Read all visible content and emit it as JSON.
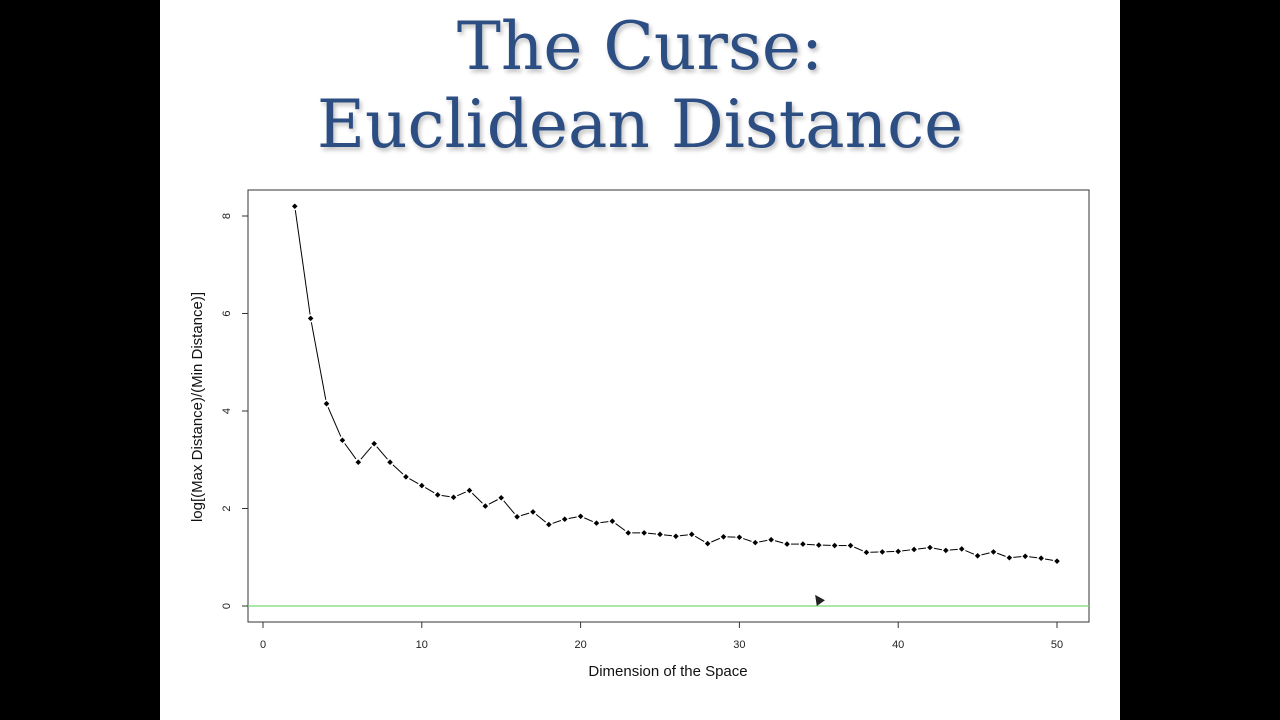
{
  "slide": {
    "title_line1": "The Curse:",
    "title_line2": "Euclidean Distance"
  },
  "colors": {
    "title": "#2d4e82",
    "series": "#000000",
    "reference_line": "#77d977"
  },
  "chart_data": {
    "type": "line",
    "xlabel": "Dimension of the Space",
    "ylabel": "log[(Max Distance)/(Min Distance)]",
    "xlim": [
      0,
      50
    ],
    "ylim": [
      0,
      8
    ],
    "xticks": [
      0,
      10,
      20,
      30,
      40,
      50
    ],
    "yticks": [
      0,
      2,
      4,
      6,
      8
    ],
    "grid": false,
    "reference_line": {
      "y": 0
    },
    "series": [
      {
        "x": [
          2,
          3,
          4,
          5,
          6,
          7,
          8,
          9,
          10,
          11,
          12,
          13,
          14,
          15,
          16,
          17,
          18,
          19,
          20,
          21,
          22,
          23,
          24,
          25,
          26,
          27,
          28,
          29,
          30,
          31,
          32,
          33,
          34,
          35,
          36,
          37,
          38,
          39,
          40,
          41,
          42,
          43,
          44,
          45,
          46,
          47,
          48,
          49,
          50
        ],
        "y": [
          8.2,
          5.9,
          4.15,
          3.4,
          2.95,
          3.33,
          2.95,
          2.65,
          2.47,
          2.28,
          2.23,
          2.37,
          2.05,
          2.22,
          1.83,
          1.93,
          1.67,
          1.78,
          1.84,
          1.7,
          1.74,
          1.5,
          1.5,
          1.47,
          1.43,
          1.47,
          1.28,
          1.42,
          1.41,
          1.3,
          1.36,
          1.27,
          1.27,
          1.25,
          1.24,
          1.24,
          1.1,
          1.11,
          1.12,
          1.16,
          1.2,
          1.14,
          1.17,
          1.03,
          1.11,
          0.99,
          1.02,
          0.98,
          0.92
        ]
      }
    ]
  }
}
